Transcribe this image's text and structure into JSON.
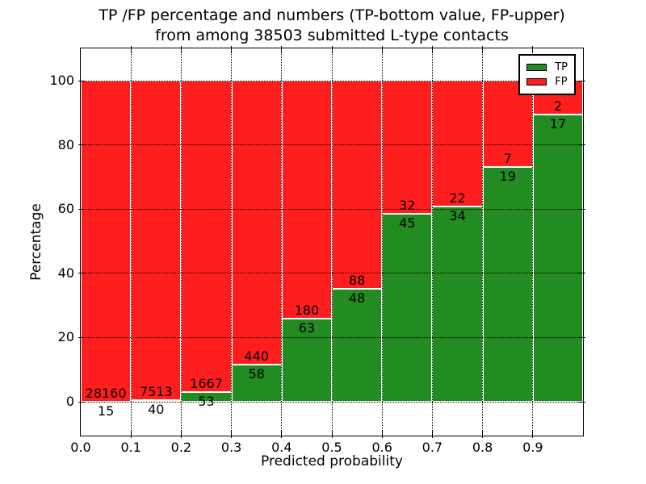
{
  "title": {
    "line1": "TP /FP percentage and numbers (TP-bottom value, FP-upper)",
    "line2": "from among 38503 submitted L-type contacts"
  },
  "chart_data": {
    "type": "bar",
    "stacked": true,
    "normalized": "each bin scaled to 100%",
    "total_submitted": 38503,
    "xlabel": "Predicted probability",
    "ylabel": "Percentage",
    "bins": [
      "0.0-0.1",
      "0.1-0.2",
      "0.2-0.3",
      "0.3-0.4",
      "0.4-0.5",
      "0.5-0.6",
      "0.6-0.7",
      "0.7-0.8",
      "0.8-0.9",
      "0.9-1.0"
    ],
    "series": [
      {
        "name": "TP",
        "color": "#228b22",
        "counts": [
          15,
          40,
          53,
          58,
          63,
          48,
          45,
          34,
          19,
          17
        ],
        "percent_of_bin": [
          0.1,
          0.5,
          3.1,
          11.6,
          25.9,
          35.3,
          58.4,
          60.7,
          73.1,
          89.5
        ]
      },
      {
        "name": "FP",
        "color": "#ff1e1e",
        "counts": [
          28160,
          7513,
          1667,
          440,
          180,
          88,
          32,
          22,
          7,
          2
        ],
        "percent_of_bin": [
          99.9,
          99.5,
          96.9,
          88.4,
          74.1,
          64.7,
          41.6,
          39.3,
          26.9,
          10.5
        ]
      }
    ],
    "xticks": [
      "0.0",
      "0.1",
      "0.2",
      "0.3",
      "0.4",
      "0.5",
      "0.6",
      "0.7",
      "0.8",
      "0.9"
    ],
    "yticks": [
      "0",
      "20",
      "40",
      "60",
      "80",
      "100"
    ],
    "xlim": [
      0.0,
      1.0
    ],
    "ylim": [
      -10.5,
      110
    ],
    "grid": true,
    "legend": {
      "position": "upper right",
      "items": [
        {
          "label": "TP",
          "color": "#228b22"
        },
        {
          "label": "FP",
          "color": "#ff1e1e"
        }
      ]
    }
  }
}
